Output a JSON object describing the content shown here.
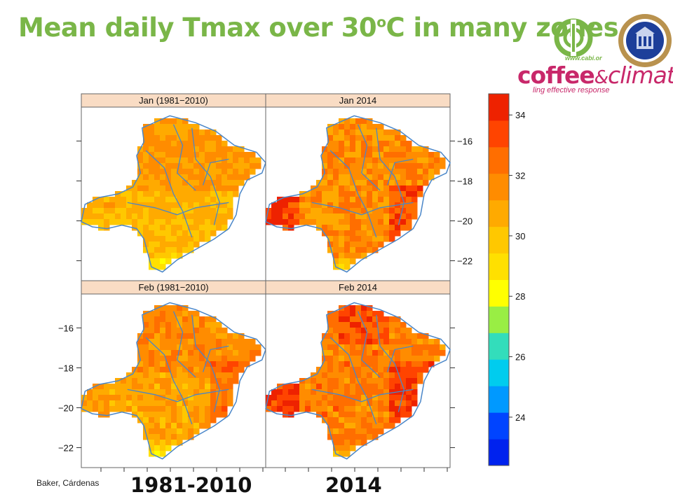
{
  "slide": {
    "title": "Mean daily Tmax over 30",
    "title_sup": "o",
    "title_tail": "C in many zones",
    "credit": "Baker, Cárdenas",
    "bottom_labels": [
      "1981-2010",
      "2014"
    ]
  },
  "logos": {
    "cabi_url": "www.cabi.or",
    "coffee_climate_word1": "coffee",
    "coffee_climate_amp": "&",
    "coffee_climate_word2": "climate",
    "coffee_climate_tagline": "ling effective response",
    "seal_name": "university-seal-icon"
  },
  "colors": {
    "title_green": "#7ab648",
    "logo_magenta": "#c8286a",
    "strip_bg": "#f9dcc4",
    "river_blue": "#4a86c8"
  },
  "chart_data": {
    "type": "heatmap",
    "panels": [
      {
        "title": "Jan (1981−2010)",
        "level": "mostly 29-31 °C, cooler south"
      },
      {
        "title": "Jan 2014",
        "level": "mostly 31-33 °C, hot west and east"
      },
      {
        "title": "Feb (1981−2010)",
        "level": "mostly 30-32 °C, cooler south"
      },
      {
        "title": "Feb 2014",
        "level": "mostly 31-34 °C, hot west and east"
      }
    ],
    "y_ticks": [
      "−16",
      "−18",
      "−20",
      "−22"
    ],
    "y_tick_values": [
      -16,
      -18,
      -20,
      -22
    ],
    "y_range": [
      -23,
      -14.3
    ],
    "colorbar": {
      "ticks": [
        "24",
        "26",
        "28",
        "30",
        "32",
        "34"
      ],
      "tick_values": [
        24,
        26,
        28,
        30,
        32,
        34
      ],
      "range": [
        22.4,
        34.7
      ],
      "colors": [
        "#0022ee",
        "#0044ff",
        "#0099ff",
        "#00ccee",
        "#33ddbb",
        "#99ee44",
        "#ffff00",
        "#ffe000",
        "#ffc800",
        "#ffaa00",
        "#ff8c00",
        "#ff6e00",
        "#ff4400",
        "#ee2200"
      ]
    }
  }
}
